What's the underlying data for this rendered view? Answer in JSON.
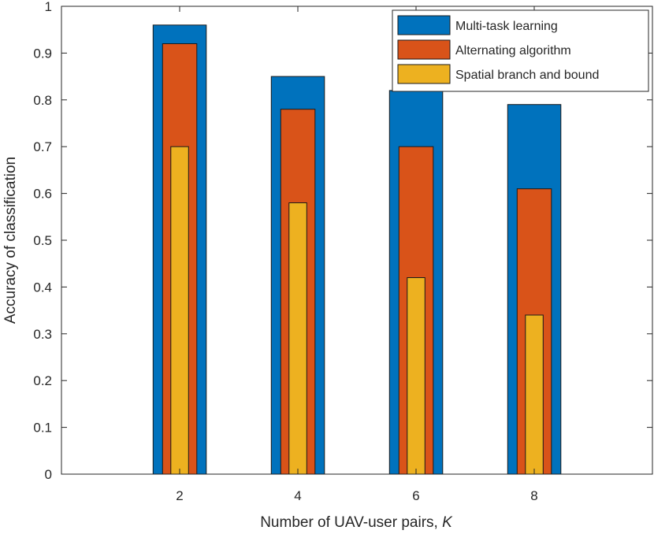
{
  "chart_data": {
    "type": "bar",
    "title": "",
    "xlabel": "Number of UAV-user pairs, ",
    "xlabel_var": "K",
    "ylabel": "Accuracy of classification",
    "categories": [
      "2",
      "4",
      "6",
      "8"
    ],
    "x": [
      2,
      4,
      6,
      8
    ],
    "xlim": [
      0,
      10
    ],
    "ylim": [
      0,
      1
    ],
    "yticks": [
      "0",
      "0.1",
      "0.2",
      "0.3",
      "0.4",
      "0.5",
      "0.6",
      "0.7",
      "0.8",
      "0.9",
      "1"
    ],
    "legend_position": "top-right",
    "series": [
      {
        "name": "Multi-task learning",
        "values": [
          0.96,
          0.85,
          0.82,
          0.79
        ],
        "color": "#0072BD"
      },
      {
        "name": "Alternating algorithm",
        "values": [
          0.92,
          0.78,
          0.7,
          0.61
        ],
        "color": "#D95319"
      },
      {
        "name": "Spatial branch and bound",
        "values": [
          0.7,
          0.58,
          0.42,
          0.34
        ],
        "color": "#EDB120"
      }
    ]
  }
}
